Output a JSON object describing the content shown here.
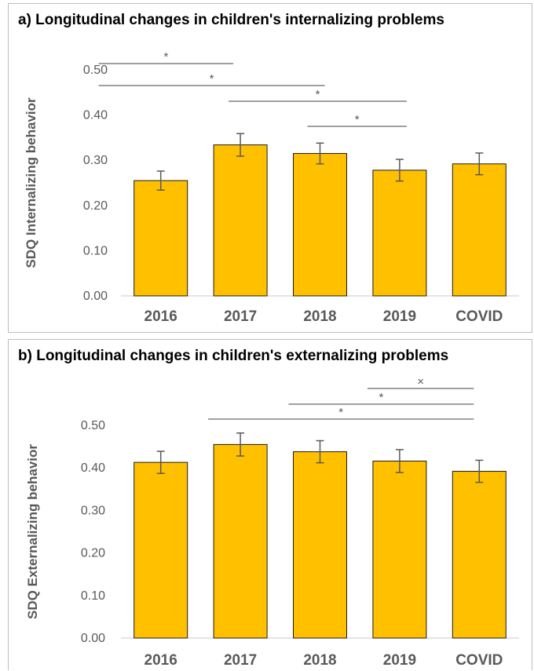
{
  "colors": {
    "bar_fill": "#ffc000",
    "bar_stroke": "#1a1a1a",
    "error_bar": "#595959",
    "sig_line": "#808080",
    "axis_text": "#595959"
  },
  "chart_data": [
    {
      "type": "bar",
      "title": "a) Longitudinal changes in children's internalizing problems",
      "ylabel": "SDQ Internalizing behavior",
      "categories": [
        "2016",
        "2017",
        "2018",
        "2019",
        "COVID"
      ],
      "values": [
        0.255,
        0.334,
        0.315,
        0.278,
        0.292
      ],
      "error_bars": [
        0.021,
        0.025,
        0.023,
        0.024,
        0.024
      ],
      "ylim": [
        0,
        0.5
      ],
      "y_ticks": [
        "0.00",
        "0.10",
        "0.20",
        "0.30",
        "0.40",
        "0.50"
      ],
      "grid": false,
      "significance": [
        {
          "from": "2016",
          "to": "2017",
          "label": "*"
        },
        {
          "from": "2016",
          "to": "2018",
          "label": "*"
        },
        {
          "from": "2017",
          "to": "2019",
          "label": "*"
        },
        {
          "from": "2018",
          "to": "2019",
          "label": "*"
        }
      ]
    },
    {
      "type": "bar",
      "title": "b) Longitudinal changes in children's externalizing problems",
      "ylabel": "SDQ Externalizing behavior",
      "categories": [
        "2016",
        "2017",
        "2018",
        "2019",
        "COVID"
      ],
      "values": [
        0.413,
        0.455,
        0.438,
        0.416,
        0.392
      ],
      "error_bars": [
        0.026,
        0.027,
        0.026,
        0.027,
        0.026
      ],
      "ylim": [
        0,
        0.5
      ],
      "y_ticks": [
        "0.00",
        "0.10",
        "0.20",
        "0.30",
        "0.40",
        "0.50"
      ],
      "grid": false,
      "significance": [
        {
          "from": "2019",
          "to": "COVID",
          "label": "×"
        },
        {
          "from": "2018",
          "to": "COVID",
          "label": "*"
        },
        {
          "from": "2017",
          "to": "COVID",
          "label": "*"
        }
      ]
    }
  ]
}
